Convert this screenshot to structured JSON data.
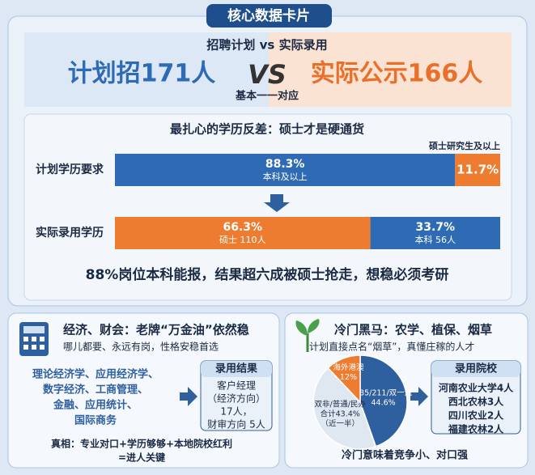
{
  "title": "核心数据卡片",
  "comparison": {
    "heading": "招聘计划 vs 实际录用",
    "plan": "计划招171人",
    "vs": "VS",
    "actual": "实际公示166人",
    "note": "基本一一对应"
  },
  "education": {
    "title": "最扎心的学历反差：硕士才是硬通货",
    "rows": [
      {
        "label": "计划学历要求",
        "segments": [
          {
            "value": 88.3,
            "value_label": "88.3%",
            "sublabel": "本科及以上",
            "color": "#2e6bb4"
          },
          {
            "value": 11.7,
            "value_label": "11.7%",
            "sublabel": "硕士研究生及以上",
            "color": "#ee7c30"
          }
        ]
      },
      {
        "label": "实际录用学历",
        "segments": [
          {
            "value": 66.3,
            "value_label": "66.3%",
            "sublabel": "硕士 110人",
            "color": "#ee7c30"
          },
          {
            "value": 33.7,
            "value_label": "33.7%",
            "sublabel": "本科 56人",
            "color": "#2e6bb4"
          }
        ]
      }
    ],
    "conclusion": "88%岗位本科能报，结果超六成被硕士抢走，想稳必须考研"
  },
  "economics": {
    "title": "经济、财会：老牌“万金油”依然稳",
    "subtitle": "哪儿都要、永远有岗，性格安稳首选",
    "majors": [
      "理论经济学、应用经济学、",
      "数字经济、工商管理、",
      "金融、应用统计、",
      "国际商务"
    ],
    "result_title": "录用结果",
    "result_lines": [
      "客户经理",
      "（经济方向）",
      "17人，",
      "财审方向 5人"
    ],
    "truth": [
      "真相：专业对口+学历够够+本地院校红利",
      "=进人关键"
    ]
  },
  "agriculture": {
    "title": "冷门黑马：农学、植保、烟草",
    "subtitle": "计划直接点名“烟草”，真懂庄稼的人才",
    "pie": [
      {
        "value": 44.6,
        "lines": [
          "985/211/双一流",
          "44.6%"
        ],
        "color": "#2e5f9e"
      },
      {
        "value": 43.4,
        "lines": [
          "双非/普通/民办",
          "合计43.4%",
          "（近一半）"
        ],
        "color": "#dfe7f1"
      },
      {
        "value": 12,
        "lines": [
          "海外港澳",
          "12%"
        ],
        "color": "#ee7c30"
      }
    ],
    "schools_title": "录用院校",
    "schools": [
      "河南农业大学4人",
      "西北农林3人",
      "四川农业2人",
      "福建农林2人"
    ],
    "footer": "冷门意味着竞争小、对口强"
  }
}
